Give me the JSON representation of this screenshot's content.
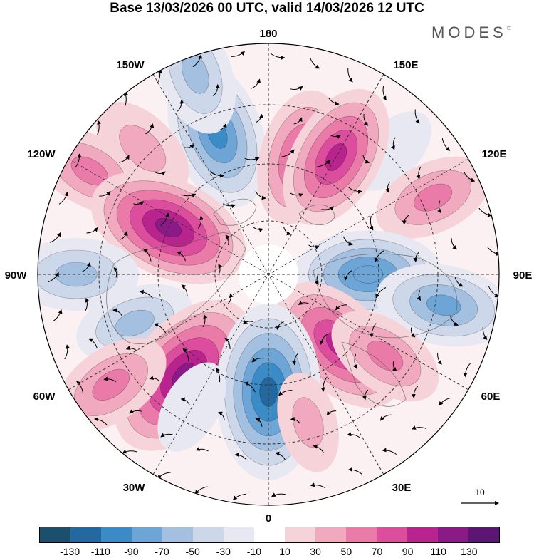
{
  "title": "Base 13/03/2026 00 UTC, valid 14/03/2026 12 UTC",
  "brand": "MODES",
  "brand_mark": "©",
  "longitude_labels": {
    "top": "180",
    "bottom": "0",
    "left": "90W",
    "right": "90E",
    "upper_left_1": "150W",
    "upper_left_2": "120W",
    "upper_right_1": "150E",
    "upper_right_2": "120E",
    "lower_left_1": "60W",
    "lower_left_2": "30W",
    "lower_right_1": "60E",
    "lower_right_2": "30E"
  },
  "reference_vector": {
    "value": "10"
  },
  "colorbar": {
    "ticks": [
      "-130",
      "-110",
      "-90",
      "-70",
      "-50",
      "-30",
      "-10",
      "10",
      "30",
      "50",
      "70",
      "90",
      "110",
      "130"
    ],
    "colors": [
      "#1c4f6e",
      "#2369a0",
      "#3b8bc6",
      "#6ea5d7",
      "#a3c0e0",
      "#cdd7ea",
      "#e8e8f2",
      "#ffffff",
      "#f6d3d8",
      "#f1a9bf",
      "#ea7aa8",
      "#dc4d9e",
      "#b8238e",
      "#8a1a86",
      "#5b1673"
    ]
  },
  "anomaly_centers": [
    {
      "lon": -160,
      "value": -95
    },
    {
      "lon": -135,
      "value": 45
    },
    {
      "lon": -120,
      "value": 55
    },
    {
      "lon": 165,
      "value": 75
    },
    {
      "lon": 135,
      "value": -25
    },
    {
      "lon": 115,
      "value": 55
    },
    {
      "lon": 150,
      "value": 90
    },
    {
      "lon": -115,
      "value": 110
    },
    {
      "lon": 90,
      "value": -90
    },
    {
      "lon": 80,
      "value": -75
    },
    {
      "lon": -90,
      "value": -60
    },
    {
      "lon": -70,
      "value": -55
    },
    {
      "lon": 45,
      "value": 95
    },
    {
      "lon": 55,
      "value": 55
    },
    {
      "lon": -40,
      "value": 125
    },
    {
      "lon": -55,
      "value": 60
    },
    {
      "lon": 0,
      "value": -125
    },
    {
      "lon": -30,
      "value": -25
    },
    {
      "lon": 15,
      "value": 30
    },
    {
      "lon": -160,
      "value": -60
    }
  ]
}
